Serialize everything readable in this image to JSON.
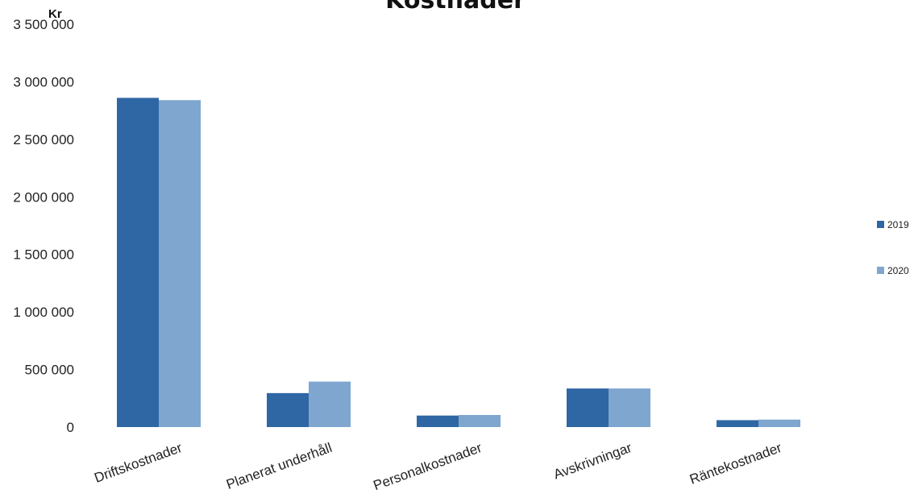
{
  "chart_data": {
    "type": "bar",
    "title": "Kostnader",
    "ylabel": "Kr",
    "xlabel": "",
    "categories": [
      "Driftskostnader",
      "Planerat underhåll",
      "Personalkostnader",
      "Avskrivningar",
      "Räntekostnader"
    ],
    "series": [
      {
        "name": "2019",
        "values": [
          2860000,
          295000,
          100000,
          335000,
          60000
        ],
        "color": "#2f66a4"
      },
      {
        "name": "2020",
        "values": [
          2840000,
          395000,
          105000,
          335000,
          65000
        ],
        "color": "#7ea6cf"
      }
    ],
    "ylim": [
      0,
      3500000
    ],
    "yticks": [
      "0",
      "500 000",
      "1 000 000",
      "1 500 000",
      "2 000 000",
      "2 500 000",
      "3 000 000",
      "3 500 000"
    ],
    "ytick_values": [
      0,
      500000,
      1000000,
      1500000,
      2000000,
      2500000,
      3000000,
      3500000
    ],
    "grid": false,
    "legend_position": "right"
  }
}
